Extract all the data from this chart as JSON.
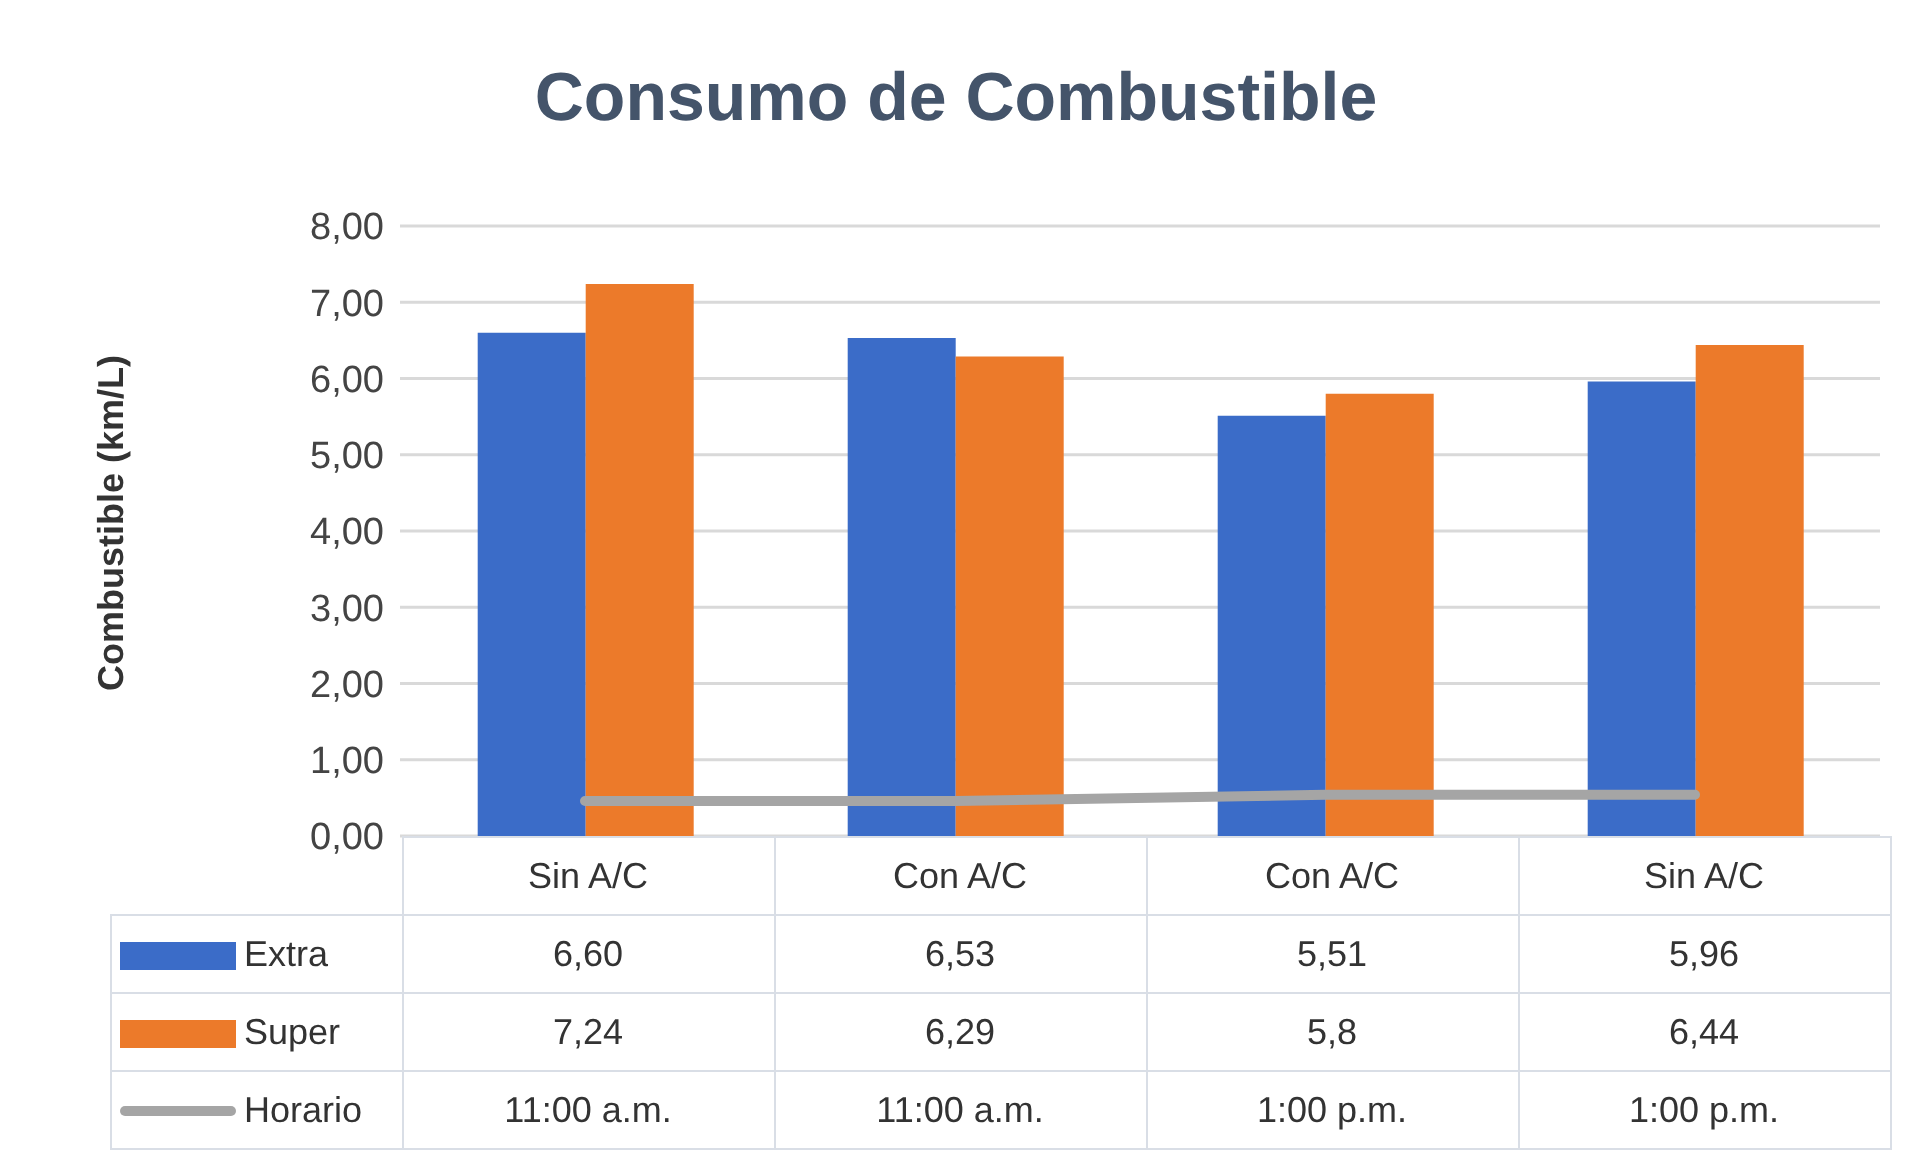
{
  "chart_data": {
    "type": "bar",
    "title": "Consumo de Combustible",
    "ylabel": "Combustible (km/L)",
    "categories": [
      "Sin A/C",
      "Con A/C",
      "Con A/C",
      "Sin A/C"
    ],
    "series": [
      {
        "name": "Extra",
        "color": "#3b6cc8",
        "values": [
          6.6,
          6.53,
          5.51,
          5.96
        ],
        "value_labels": [
          "6,60",
          "6,53",
          "5,51",
          "5,96"
        ]
      },
      {
        "name": "Super",
        "color": "#ec7a2a",
        "values": [
          7.24,
          6.29,
          5.8,
          6.44
        ],
        "value_labels": [
          "7,24",
          "6,29",
          "5,8",
          "6,44"
        ]
      },
      {
        "name": "Horario",
        "type": "line",
        "color": "#a5a5a5",
        "values": [
          0.46,
          0.46,
          0.54,
          0.54
        ]
      }
    ],
    "annotations": [
      "11:00 a.m.",
      "11:00 a.m.",
      "1:00 p.m.",
      "1:00 p.m."
    ],
    "ylim": [
      0,
      8
    ],
    "yticks": [
      {
        "value": 0,
        "label": "0,00"
      },
      {
        "value": 1,
        "label": "1,00"
      },
      {
        "value": 2,
        "label": "2,00"
      },
      {
        "value": 3,
        "label": "3,00"
      },
      {
        "value": 4,
        "label": "4,00"
      },
      {
        "value": 5,
        "label": "5,00"
      },
      {
        "value": 6,
        "label": "6,00"
      },
      {
        "value": 7,
        "label": "7,00"
      },
      {
        "value": 8,
        "label": "8,00"
      }
    ],
    "grid": "y",
    "legend": "bottom",
    "marker": "none"
  }
}
